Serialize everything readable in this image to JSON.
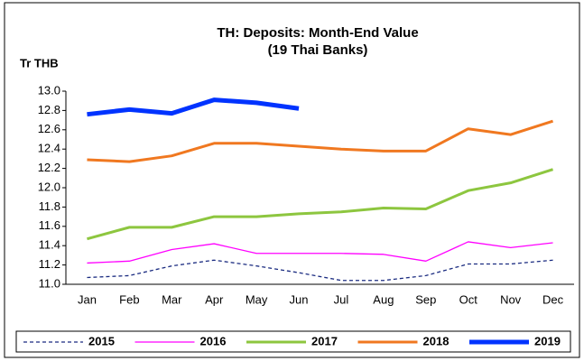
{
  "chart_data": {
    "type": "line",
    "title": "TH: Deposits: Month-End Value",
    "subtitle": "(19 Thai Banks)",
    "y_label": "Tr THB",
    "categories": [
      "Jan",
      "Feb",
      "Mar",
      "Apr",
      "May",
      "Jun",
      "Jul",
      "Aug",
      "Sep",
      "Oct",
      "Nov",
      "Dec"
    ],
    "series": [
      {
        "name": "2015",
        "color": "#1a2b80",
        "width": 1.3,
        "dashed": true,
        "values": [
          11.07,
          11.09,
          11.19,
          11.25,
          11.19,
          11.12,
          11.04,
          11.04,
          11.09,
          11.21,
          11.21,
          11.25
        ]
      },
      {
        "name": "2016",
        "color": "#ff00ff",
        "width": 1.3,
        "dashed": false,
        "values": [
          11.22,
          11.24,
          11.36,
          11.42,
          11.32,
          11.32,
          11.32,
          11.31,
          11.24,
          11.44,
          11.38,
          11.43
        ]
      },
      {
        "name": "2017",
        "color": "#8dc63f",
        "width": 3,
        "dashed": false,
        "values": [
          11.47,
          11.59,
          11.59,
          11.7,
          11.7,
          11.73,
          11.75,
          11.79,
          11.78,
          11.97,
          12.05,
          12.19
        ]
      },
      {
        "name": "2018",
        "color": "#f07820",
        "width": 3,
        "dashed": false,
        "values": [
          12.29,
          12.27,
          12.33,
          12.46,
          12.46,
          12.43,
          12.4,
          12.38,
          12.38,
          12.61,
          12.55,
          12.69
        ]
      },
      {
        "name": "2019",
        "color": "#0033ff",
        "width": 5,
        "dashed": false,
        "values": [
          12.76,
          12.81,
          12.77,
          12.91,
          12.88,
          12.82,
          null,
          null,
          null,
          null,
          null,
          null
        ]
      }
    ],
    "ylim": [
      11,
      13
    ],
    "yticks": [
      {
        "value": 11,
        "label": "11.0"
      },
      11.2,
      11.4,
      11.6,
      11.8,
      {
        "value": 12,
        "label": "12.0"
      },
      12.2,
      12.4,
      12.6,
      12.8,
      {
        "value": 13,
        "label": "13.0"
      }
    ],
    "grid": false,
    "legend": "bottom"
  }
}
